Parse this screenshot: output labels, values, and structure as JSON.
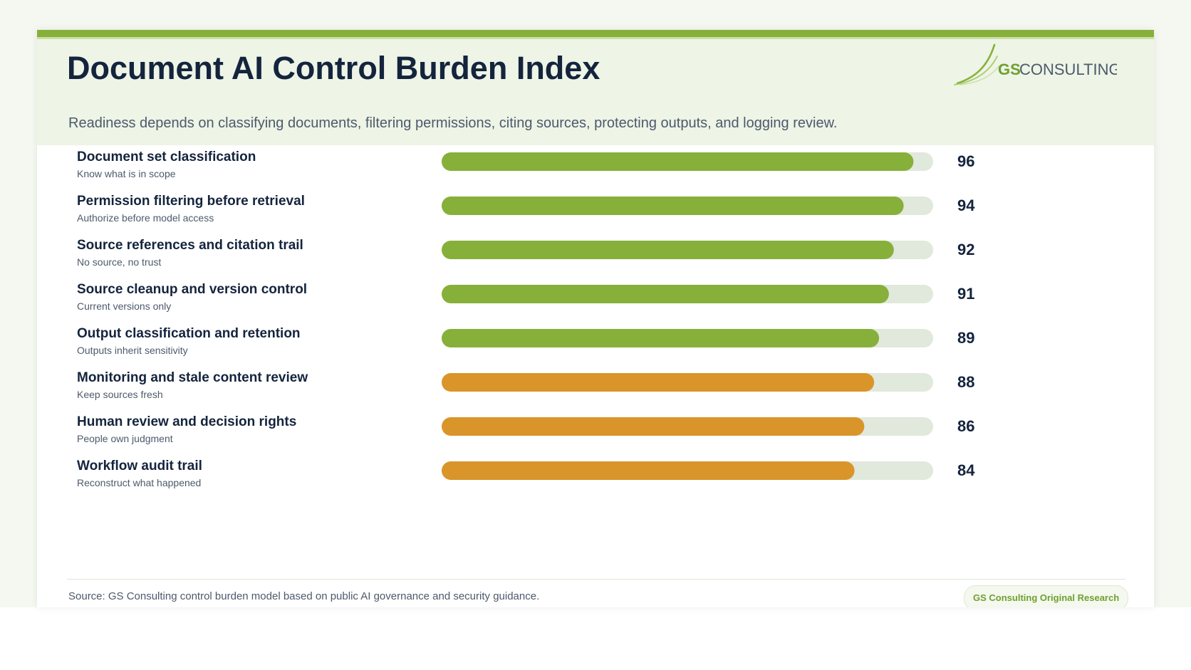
{
  "header": {
    "title": "Document AI Control Burden Index",
    "subtitle": "Readiness depends on classifying documents, filtering permissions, citing sources, protecting outputs, and logging review.",
    "logo_text_gs": "GS",
    "logo_text_consulting": "CONSULTING"
  },
  "footer": {
    "source": "Source: GS Consulting control burden model based on public AI governance and security guidance.",
    "badge": "GS Consulting Original Research"
  },
  "colors": {
    "brand_green": "#86b039",
    "bar_green": "#86b039",
    "bar_orange": "#d9952a",
    "track": "#e1e8dc",
    "title_navy": "#14243d"
  },
  "chart_data": {
    "type": "bar",
    "orientation": "horizontal",
    "xlim": [
      0,
      100
    ],
    "categories": [
      "Document set classification",
      "Permission filtering before retrieval",
      "Source references and citation trail",
      "Source cleanup and version control",
      "Output classification and retention",
      "Monitoring and stale content review",
      "Human review and decision rights",
      "Workflow audit trail"
    ],
    "descriptions": [
      "Know what is in scope",
      "Authorize before model access",
      "No source, no trust",
      "Current versions only",
      "Outputs inherit sensitivity",
      "Keep sources fresh",
      "People own judgment",
      "Reconstruct what happened"
    ],
    "values": [
      96,
      94,
      92,
      91,
      89,
      88,
      86,
      84
    ],
    "bar_colors": [
      "green",
      "green",
      "green",
      "green",
      "green",
      "orange",
      "orange",
      "orange"
    ]
  }
}
